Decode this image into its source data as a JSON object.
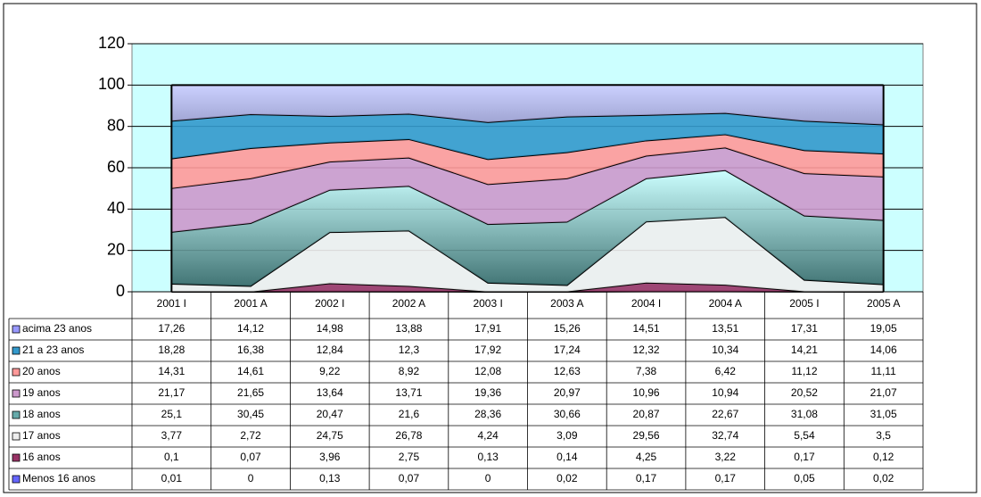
{
  "chart_data": {
    "type": "stacked_area",
    "categories": [
      "2001 I",
      "2001 A",
      "2002 I",
      "2002 A",
      "2003 I",
      "2003 A",
      "2004 I",
      "2004 A",
      "2005 I",
      "2005 A"
    ],
    "ylim": [
      0,
      120
    ],
    "yticks": [
      0,
      20,
      40,
      60,
      80,
      100,
      120
    ],
    "grid": true,
    "series": [
      {
        "name": "acima 23 anos",
        "color": "#9999ff",
        "values": [
          17.26,
          14.12,
          14.98,
          13.88,
          17.91,
          15.26,
          14.51,
          13.51,
          17.31,
          19.05
        ],
        "value_labels": [
          "17,26",
          "14,12",
          "14,98",
          "13,88",
          "17,91",
          "15,26",
          "14,51",
          "13,51",
          "17,31",
          "19,05"
        ]
      },
      {
        "name": "21 a 23 anos",
        "color": "#3399cc",
        "values": [
          18.28,
          16.38,
          12.84,
          12.3,
          17.92,
          17.24,
          12.32,
          10.34,
          14.21,
          14.06
        ],
        "value_labels": [
          "18,28",
          "16,38",
          "12,84",
          "12,3",
          "17,92",
          "17,24",
          "12,32",
          "10,34",
          "14,21",
          "14,06"
        ]
      },
      {
        "name": "20 anos",
        "color": "#ff9999",
        "values": [
          14.31,
          14.61,
          9.22,
          8.92,
          12.08,
          12.63,
          7.38,
          6.42,
          11.12,
          11.11
        ],
        "value_labels": [
          "14,31",
          "14,61",
          "9,22",
          "8,92",
          "12,08",
          "12,63",
          "7,38",
          "6,42",
          "11,12",
          "11,11"
        ]
      },
      {
        "name": "19 anos",
        "color": "#cc99cc",
        "values": [
          21.17,
          21.65,
          13.64,
          13.71,
          19.36,
          20.97,
          10.96,
          10.94,
          20.52,
          21.07
        ],
        "value_labels": [
          "21,17",
          "21,65",
          "13,64",
          "13,71",
          "19,36",
          "20,97",
          "10,96",
          "10,94",
          "20,52",
          "21,07"
        ]
      },
      {
        "name": "18 anos",
        "color": "#66aaaa",
        "values": [
          25.1,
          30.45,
          20.47,
          21.6,
          28.36,
          30.66,
          20.87,
          22.67,
          31.08,
          31.05
        ],
        "value_labels": [
          "25,1",
          "30,45",
          "20,47",
          "21,6",
          "28,36",
          "30,66",
          "20,87",
          "22,67",
          "31,08",
          "31,05"
        ]
      },
      {
        "name": "17 anos",
        "color": "#eeeeee",
        "values": [
          3.77,
          2.72,
          24.75,
          26.78,
          4.24,
          3.09,
          29.56,
          32.74,
          5.54,
          3.5
        ],
        "value_labels": [
          "3,77",
          "2,72",
          "24,75",
          "26,78",
          "4,24",
          "3,09",
          "29,56",
          "32,74",
          "5,54",
          "3,5"
        ]
      },
      {
        "name": "16 anos",
        "color": "#993366",
        "values": [
          0.1,
          0.07,
          3.96,
          2.75,
          0.13,
          0.14,
          4.25,
          3.22,
          0.17,
          0.12
        ],
        "value_labels": [
          "0,1",
          "0,07",
          "3,96",
          "2,75",
          "0,13",
          "0,14",
          "4,25",
          "3,22",
          "0,17",
          "0,12"
        ]
      },
      {
        "name": "Menos 16 anos",
        "color": "#6666ff",
        "values": [
          0.01,
          0,
          0.13,
          0.07,
          0,
          0.02,
          0.17,
          0.17,
          0.05,
          0.02
        ],
        "value_labels": [
          "0,01",
          "0",
          "0,13",
          "0,07",
          "0",
          "0,02",
          "0,17",
          "0,17",
          "0,05",
          "0,02"
        ]
      }
    ]
  }
}
